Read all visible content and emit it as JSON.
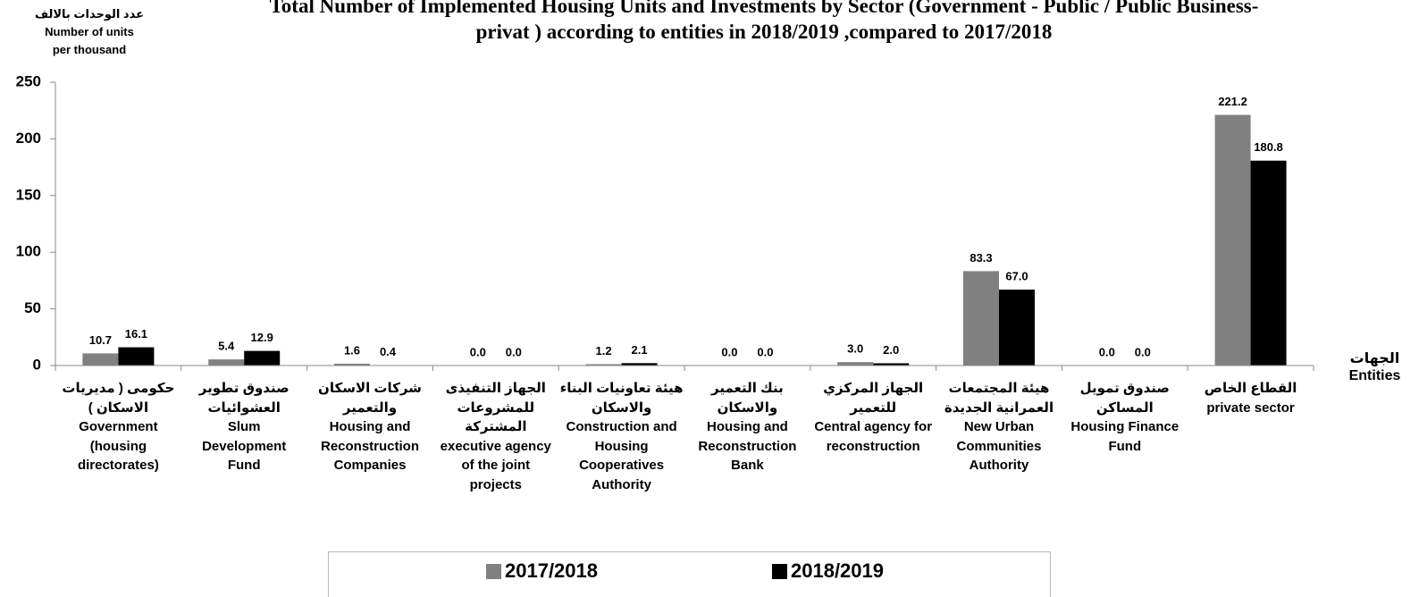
{
  "chart_data": {
    "type": "bar",
    "title": "Total Number of Implemented Housing Units  and Investments by Sector (Government - Public / Public Business-\nprivat ) according to entities in 2018/2019 ,compared to 2017/2018",
    "y_label": "عدد الوحدات بالالف\nNumber of units\nper thousand",
    "x_label": "الجهات\nEntities",
    "categories": [
      "حكومى ( مديريات\nالاسكان )\nGovernment\n(housing\ndirectorates)",
      "صندوق تطوير\nالعشوائيات\nSlum\nDevelopment\nFund",
      "شركات الاسكان\nوالتعمير\nHousing and\nReconstruction\nCompanies",
      "الجهاز التنفيذى\nللمشروعات المشتركة\nexecutive agency\nof the joint\nprojects",
      "هيئة تعاونيات البناء\nوالاسكان\nConstruction and\nHousing\nCooperatives\nAuthority",
      "بنك التعمير والاسكان\nHousing and\nReconstruction\nBank",
      "الجهاز المركزي للتعمير\nCentral agency for\nreconstruction",
      "هيئة المجتمعات\nالعمرانية الجديدة\nNew Urban\nCommunities\nAuthority",
      "صندوق تمويل المساكن\nHousing Finance\nFund",
      "القطاع الخاص\nprivate sector"
    ],
    "series": [
      {
        "name": "2017/2018",
        "color": "#808080",
        "values": [
          10.7,
          5.4,
          1.6,
          0,
          1.2,
          0,
          3,
          83.3,
          0,
          221.2
        ],
        "value_labels": [
          "10.7",
          "5.4",
          "1.6",
          "0.0",
          "1.2",
          "0.0",
          "3.0",
          "83.3",
          "0.0",
          "221.2"
        ]
      },
      {
        "name": "2018/2019",
        "color": "#000000",
        "values": [
          16.1,
          12.9,
          0.4,
          0,
          2.1,
          0,
          2,
          67,
          0,
          180.8
        ],
        "value_labels": [
          "16.1",
          "12.9",
          "0.4",
          "0.0",
          "2.1",
          "0.0",
          "2.0",
          "67.0",
          "0.0",
          "180.8"
        ]
      }
    ],
    "ylim": [
      0,
      250
    ],
    "yticks": [
      0,
      50,
      100,
      150,
      200,
      250
    ],
    "grid": false,
    "legend": "bottom"
  }
}
